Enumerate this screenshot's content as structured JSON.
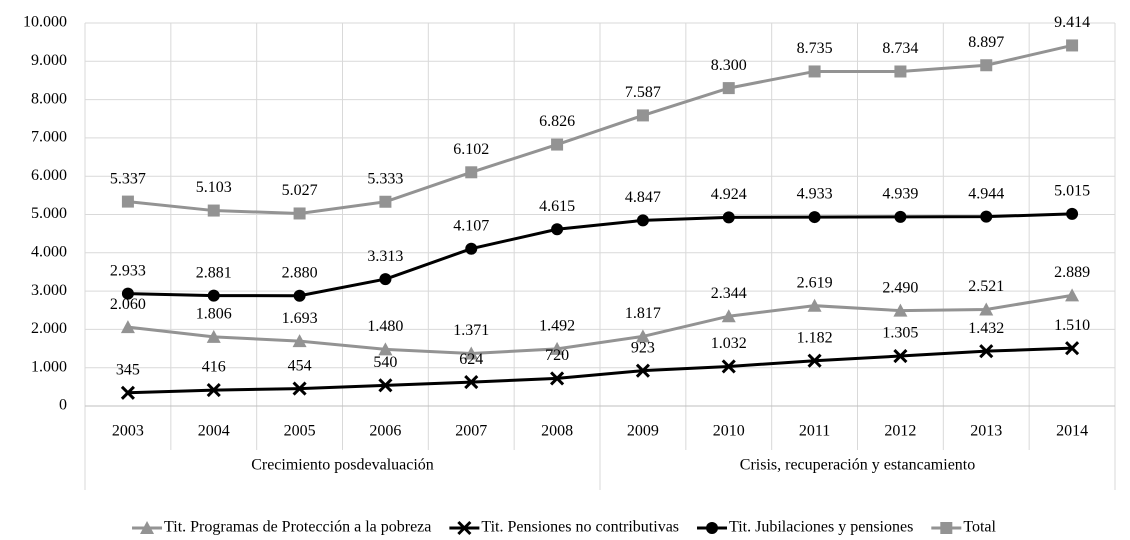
{
  "chart_data": {
    "type": "line",
    "categories": [
      "2003",
      "2004",
      "2005",
      "2006",
      "2007",
      "2008",
      "2009",
      "2010",
      "2011",
      "2012",
      "2013",
      "2014"
    ],
    "groups": [
      {
        "label": "Crecimiento posdevaluación",
        "span": 6
      },
      {
        "label": "Crisis, recuperación y estancamiento",
        "span": 6
      }
    ],
    "series": [
      {
        "name": "Tit. Programas de Protección a la pobreza",
        "color": "#939393",
        "marker": "triangle",
        "values": [
          2060,
          1806,
          1693,
          1480,
          1371,
          1492,
          1817,
          2344,
          2619,
          2490,
          2521,
          2889
        ],
        "value_labels": [
          "2.060",
          "1.806",
          "1.693",
          "1.480",
          "1.371",
          "1.492",
          "1.817",
          "2.344",
          "2.619",
          "2.490",
          "2.521",
          "2.889"
        ]
      },
      {
        "name": "Tit. Pensiones no contributivas",
        "color": "#000000",
        "marker": "x",
        "values": [
          345,
          416,
          454,
          540,
          624,
          720,
          923,
          1032,
          1182,
          1305,
          1432,
          1510
        ],
        "value_labels": [
          "345",
          "416",
          "454",
          "540",
          "624",
          "720",
          "923",
          "1.032",
          "1.182",
          "1.305",
          "1.432",
          "1.510"
        ]
      },
      {
        "name": "Tit. Jubilaciones y pensiones",
        "color": "#000000",
        "marker": "circle",
        "values": [
          2933,
          2881,
          2880,
          3313,
          4107,
          4615,
          4847,
          4924,
          4933,
          4939,
          4944,
          5015
        ],
        "value_labels": [
          "2.933",
          "2.881",
          "2.880",
          "3.313",
          "4.107",
          "4.615",
          "4.847",
          "4.924",
          "4.933",
          "4.939",
          "4.944",
          "5.015"
        ]
      },
      {
        "name": "Total",
        "color": "#939393",
        "marker": "square",
        "values": [
          5337,
          5103,
          5027,
          5333,
          6102,
          6826,
          7587,
          8300,
          8735,
          8734,
          8897,
          9414
        ],
        "value_labels": [
          "5.337",
          "5.103",
          "5.027",
          "5.333",
          "6.102",
          "6.826",
          "7.587",
          "8.300",
          "8.735",
          "8.734",
          "8.897",
          "9.414"
        ]
      }
    ],
    "ylim": [
      0,
      10000
    ],
    "yticks": [
      0,
      {
        "value": 1000,
        "label": "1.000"
      },
      {
        "value": 2000,
        "label": "2.000"
      },
      {
        "value": 3000,
        "label": "3.000"
      },
      {
        "value": 4000,
        "label": "4.000"
      },
      {
        "value": 5000,
        "label": "5.000"
      },
      {
        "value": 6000,
        "label": "6.000"
      },
      {
        "value": 7000,
        "label": "7.000"
      },
      {
        "value": 8000,
        "label": "8.000"
      },
      {
        "value": 9000,
        "label": "9.000"
      },
      {
        "value": 10000,
        "label": "10.000"
      }
    ],
    "grid": true,
    "legend": "bottom"
  }
}
